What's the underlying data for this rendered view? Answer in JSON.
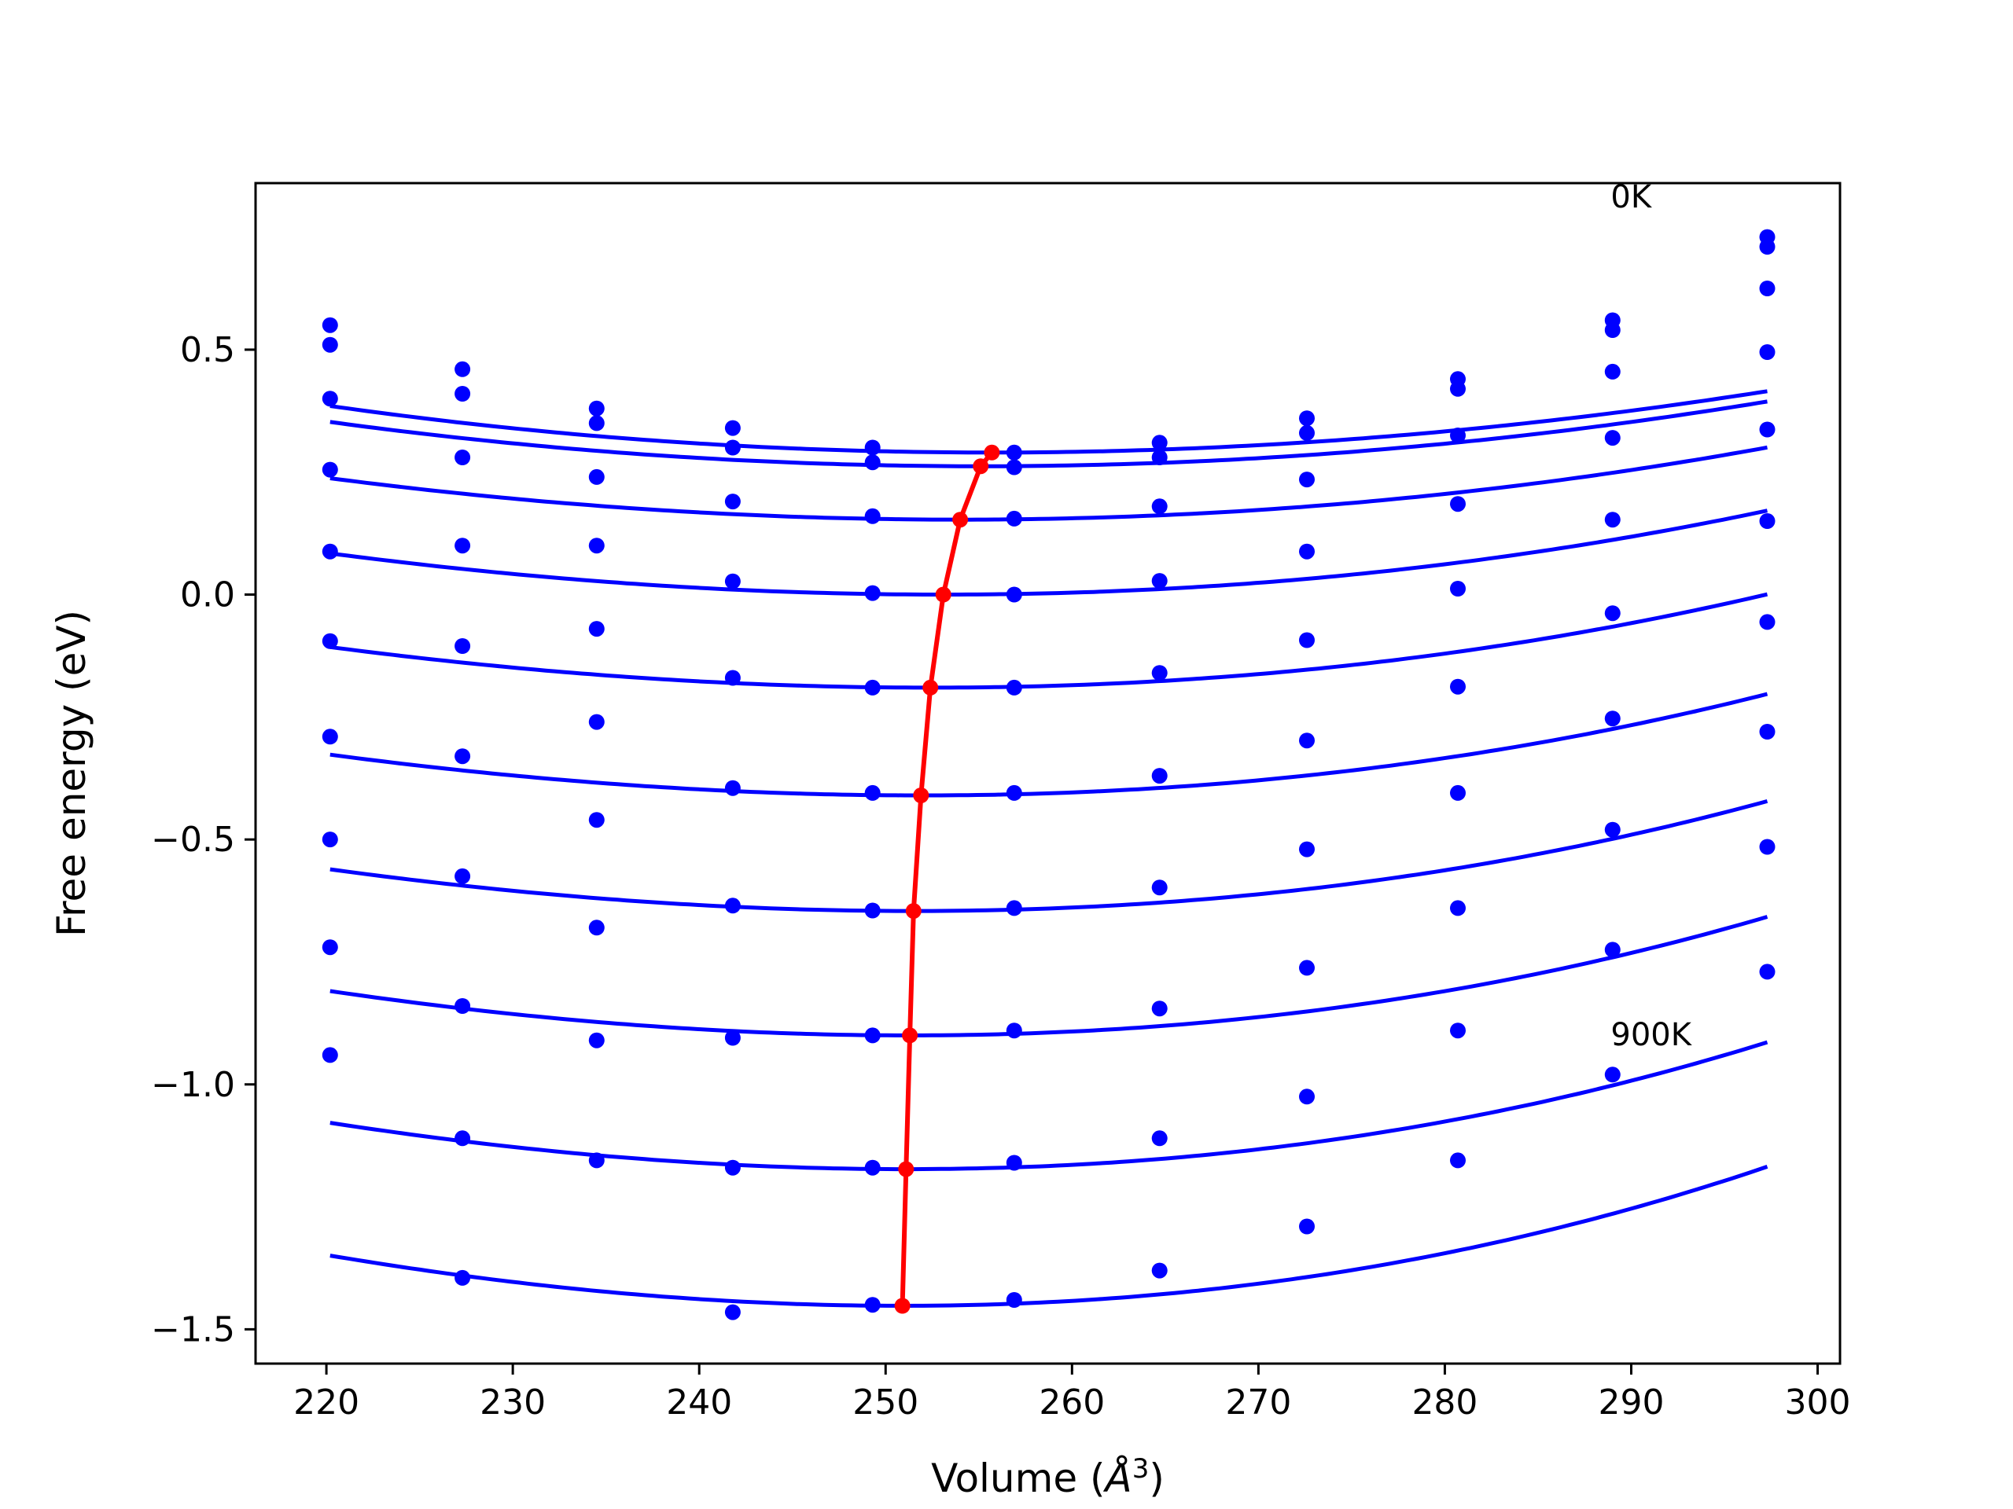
{
  "chart_data": {
    "type": "scatter",
    "xlabel": "Volume (",
    "xlabel_symbol": "Å",
    "xlabel_exponent": "3",
    "xlabel_suffix": ")",
    "ylabel": "Free energy (eV)",
    "xlim": [
      216.2,
      301.2
    ],
    "ylim": [
      -1.57,
      0.84
    ],
    "x_ticks": [
      220,
      230,
      240,
      250,
      260,
      270,
      280,
      290,
      300
    ],
    "x_tick_labels": [
      "220",
      "230",
      "240",
      "250",
      "260",
      "270",
      "280",
      "290",
      "300"
    ],
    "y_ticks": [
      -1.5,
      -1.0,
      -0.5,
      0.0,
      0.5
    ],
    "y_tick_labels": [
      "−1.5",
      "−1.0",
      "−0.5",
      "0.0",
      "0.5"
    ],
    "grid": false,
    "annotations": [
      {
        "text": "0K",
        "x": 288.9,
        "y": 0.79
      },
      {
        "text": "900K",
        "x": 288.9,
        "y": -0.92
      }
    ],
    "volumes": [
      220.2,
      227.3,
      234.5,
      241.8,
      249.3,
      256.9,
      264.7,
      272.6,
      280.7,
      289.0,
      297.3
    ],
    "series": [
      {
        "values": [
          0.55,
          0.46,
          0.38,
          0.34,
          0.3,
          0.29,
          0.31,
          0.36,
          0.44,
          0.56,
          0.73
        ],
        "fit": {
          "v0": 255.7,
          "e0": 0.29,
          "a": 7.4e-05,
          "b": -4e-08,
          "x0": 220.2
        }
      },
      {
        "values": [
          0.51,
          0.41,
          0.35,
          0.3,
          0.27,
          0.26,
          0.28,
          0.33,
          0.42,
          0.54,
          0.71
        ],
        "fit": {
          "v0": 255.1,
          "e0": 0.262,
          "a": 7.42e-05,
          "b": 0.0,
          "x0": 220.2
        }
      },
      {
        "values": [
          0.4,
          0.28,
          0.24,
          0.19,
          0.16,
          0.155,
          0.18,
          0.235,
          0.325,
          0.455,
          0.625
        ],
        "fit": {
          "v0": 254.0,
          "e0": 0.153,
          "a": 7.6e-05,
          "b": 6e-08,
          "x0": 220.2
        }
      },
      {
        "values": [
          0.255,
          0.1,
          0.1,
          0.027,
          0.003,
          0.0,
          0.028,
          0.088,
          0.185,
          0.32,
          0.495
        ],
        "fit": {
          "v0": 253.1,
          "e0": 0.0,
          "a": 8.2e-05,
          "b": 1.3e-07,
          "x0": 220.2
        }
      },
      {
        "values": [
          0.088,
          -0.105,
          -0.07,
          -0.17,
          -0.19,
          -0.19,
          -0.16,
          -0.093,
          0.012,
          0.153,
          0.337
        ],
        "fit": {
          "v0": 252.4,
          "e0": -0.19,
          "a": 8.6e-05,
          "b": 1.9e-07,
          "x0": 220.2
        }
      },
      {
        "values": [
          -0.095,
          -0.33,
          -0.26,
          -0.395,
          -0.405,
          -0.405,
          -0.37,
          -0.298,
          -0.188,
          -0.038,
          0.15
        ],
        "fit": {
          "v0": 251.9,
          "e0": -0.41,
          "a": 9e-05,
          "b": 2.3e-07,
          "x0": 220.2
        }
      },
      {
        "values": [
          -0.29,
          -0.575,
          -0.46,
          -0.635,
          -0.645,
          -0.64,
          -0.598,
          -0.52,
          -0.405,
          -0.253,
          -0.056
        ],
        "fit": {
          "v0": 251.5,
          "e0": -0.646,
          "a": 9.5e-05,
          "b": 2.6e-07,
          "x0": 220.2
        }
      },
      {
        "values": [
          -0.5,
          -0.84,
          -0.68,
          -0.905,
          -0.9,
          -0.89,
          -0.845,
          -0.762,
          -0.64,
          -0.48,
          -0.28
        ],
        "fit": {
          "v0": 251.3,
          "e0": -0.9,
          "a": 0.000102,
          "b": 2.7e-07,
          "x0": 220.2
        }
      },
      {
        "values": [
          -0.72,
          -1.11,
          -0.91,
          -1.17,
          -1.17,
          -1.16,
          -1.11,
          -1.025,
          -0.89,
          -0.725,
          -0.515
        ],
        "fit": {
          "v0": 251.1,
          "e0": -1.173,
          "a": 0.000108,
          "b": 2.9e-07,
          "x0": 220.2
        }
      },
      {
        "values": [
          -0.94,
          -1.395,
          -1.155,
          -1.465,
          -1.45,
          -1.44,
          -1.38,
          -1.29,
          -1.155,
          -0.98,
          -0.77
        ],
        "fit": {
          "v0": 250.9,
          "e0": -1.452,
          "a": 0.000118,
          "b": 3e-07,
          "x0": 220.2
        }
      }
    ],
    "minima_curve": {
      "x": [
        255.7,
        255.1,
        254.0,
        253.1,
        252.4,
        251.9,
        251.5,
        251.3,
        251.1,
        250.9
      ],
      "y": [
        0.29,
        0.262,
        0.153,
        0.0,
        -0.19,
        -0.41,
        -0.646,
        -0.9,
        -1.173,
        -1.452
      ]
    },
    "colors": {
      "fit": "#0000ff",
      "points": "#0000ff",
      "minima": "#ff0000",
      "axes": "#000000",
      "background": "#ffffff"
    }
  }
}
